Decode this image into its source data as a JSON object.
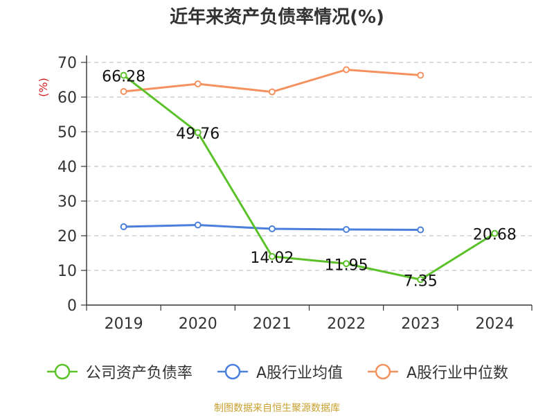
{
  "chart_data": {
    "type": "line",
    "title": "近年来资产负债率情况(%)",
    "ylabel": "(%)",
    "xlabel": "",
    "categories": [
      "2019",
      "2020",
      "2021",
      "2022",
      "2023",
      "2024"
    ],
    "ylim": [
      0,
      70
    ],
    "yticks": [
      0,
      10,
      20,
      30,
      40,
      50,
      60,
      70
    ],
    "grid": true,
    "legend_position": "bottom",
    "series": [
      {
        "name": "公司资产负债率",
        "color": "#5bc129",
        "values": [
          66.28,
          49.76,
          14.02,
          11.95,
          7.35,
          20.68
        ],
        "labels": [
          "66.28",
          "49.76",
          "14.02",
          "11.95",
          "7.35",
          "20.68"
        ]
      },
      {
        "name": "A股行业均值",
        "color": "#4a7fdc",
        "values": [
          22.6,
          23.1,
          22.0,
          21.8,
          21.7,
          null
        ]
      },
      {
        "name": "A股行业中位数",
        "color": "#f4915e",
        "values": [
          61.6,
          63.8,
          61.5,
          67.9,
          66.3,
          null
        ]
      }
    ]
  },
  "source": "制图数据来自恒生聚源数据库"
}
